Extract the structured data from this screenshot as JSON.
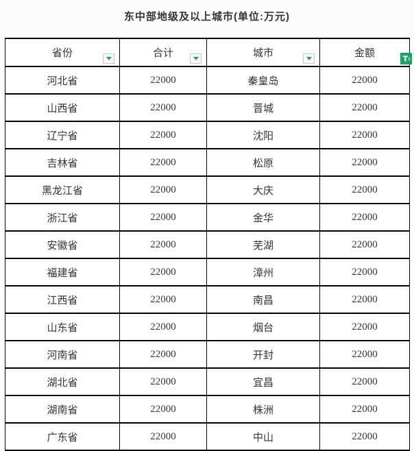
{
  "title": "东中部地级及以上城市(单位:万元)",
  "colors": {
    "accent_green": "#1ea064",
    "cell_background": "#ffffff",
    "border": "#000000",
    "text": "#333333"
  },
  "table": {
    "columns": [
      {
        "key": "province",
        "label": "省份",
        "filter": "dropdown",
        "filter_icon": "chevron-down-icon"
      },
      {
        "key": "total",
        "label": "合计",
        "filter": "dropdown",
        "filter_icon": "chevron-down-icon"
      },
      {
        "key": "city",
        "label": "城市",
        "filter": "dropdown",
        "filter_icon": "chevron-down-icon"
      },
      {
        "key": "amount",
        "label": "金额",
        "filter": "active",
        "filter_icon": "filter-funnel-icon"
      }
    ],
    "rows": [
      [
        "河北省",
        "22000",
        "秦皇岛",
        "22000"
      ],
      [
        "山西省",
        "22000",
        "晋城",
        "22000"
      ],
      [
        "辽宁省",
        "22000",
        "沈阳",
        "22000"
      ],
      [
        "吉林省",
        "22000",
        "松原",
        "22000"
      ],
      [
        "黑龙江省",
        "22000",
        "大庆",
        "22000"
      ],
      [
        "浙江省",
        "22000",
        "金华",
        "22000"
      ],
      [
        "安徽省",
        "22000",
        "芜湖",
        "22000"
      ],
      [
        "福建省",
        "22000",
        "漳州",
        "22000"
      ],
      [
        "江西省",
        "22000",
        "南昌",
        "22000"
      ],
      [
        "山东省",
        "22000",
        "烟台",
        "22000"
      ],
      [
        "河南省",
        "22000",
        "开封",
        "22000"
      ],
      [
        "湖北省",
        "22000",
        "宜昌",
        "22000"
      ],
      [
        "湖南省",
        "22000",
        "株洲",
        "22000"
      ],
      [
        "广东省",
        "22000",
        "中山",
        "22000"
      ]
    ]
  }
}
